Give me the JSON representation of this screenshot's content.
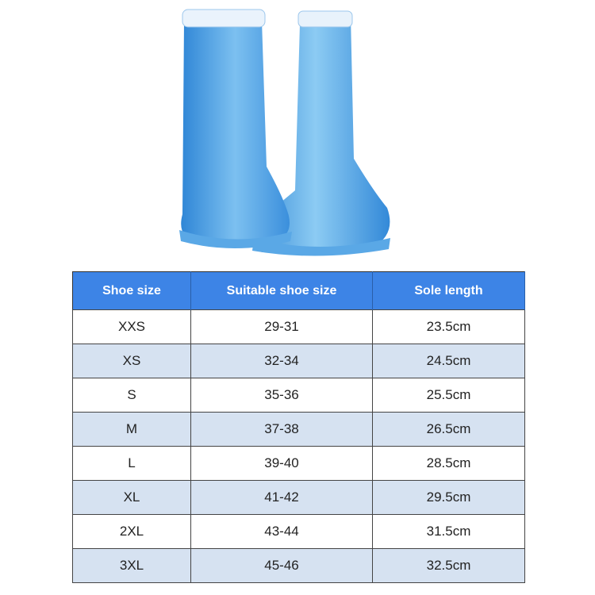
{
  "product": {
    "image": "blue-rain-boot-covers"
  },
  "colors": {
    "header_bg": "#3d84e6",
    "alt_row_bg": "#d6e2f1",
    "boot": "#4a9fe0"
  },
  "table": {
    "headers": [
      "Shoe size",
      "Suitable shoe size",
      "Sole length"
    ],
    "rows": [
      [
        "XXS",
        "29-31",
        "23.5cm"
      ],
      [
        "XS",
        "32-34",
        "24.5cm"
      ],
      [
        "S",
        "35-36",
        "25.5cm"
      ],
      [
        "M",
        "37-38",
        "26.5cm"
      ],
      [
        "L",
        "39-40",
        "28.5cm"
      ],
      [
        "XL",
        "41-42",
        "29.5cm"
      ],
      [
        "2XL",
        "43-44",
        "31.5cm"
      ],
      [
        "3XL",
        "45-46",
        "32.5cm"
      ]
    ]
  }
}
